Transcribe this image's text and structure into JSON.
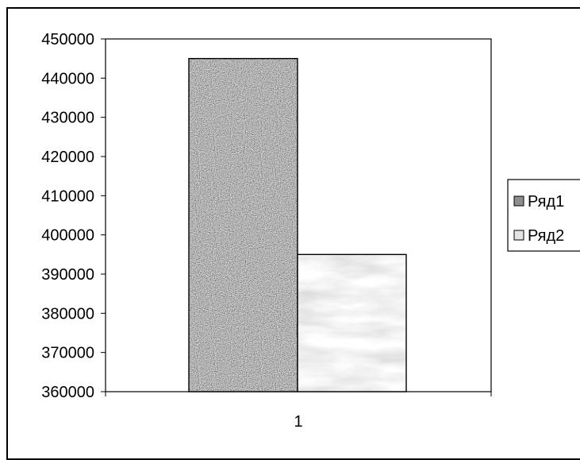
{
  "chart_data": {
    "type": "bar",
    "categories": [
      "1"
    ],
    "series": [
      {
        "name": "Ряд1",
        "values": [
          445000
        ]
      },
      {
        "name": "Ряд2",
        "values": [
          395000
        ]
      }
    ],
    "y_ticks": [
      "450000",
      "440000",
      "430000",
      "420000",
      "410000",
      "400000",
      "390000",
      "380000",
      "370000",
      "360000"
    ],
    "ylim": [
      360000,
      450000
    ],
    "legend_position": "right",
    "grid": false,
    "colors": {
      "series1": "#8e8e8e",
      "series2": "#e4e4e4",
      "axis": "#000000"
    }
  }
}
